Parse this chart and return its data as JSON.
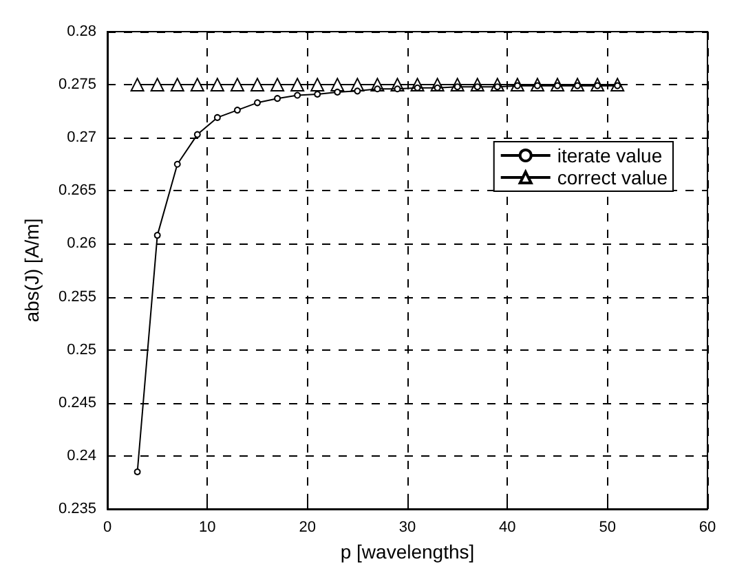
{
  "chart_data": {
    "type": "line",
    "xlabel": "p [wavelengths]",
    "ylabel": "abs(J) [A/m]",
    "x": [
      3,
      5,
      7,
      9,
      11,
      13,
      15,
      17,
      19,
      21,
      23,
      25,
      27,
      29,
      31,
      33,
      35,
      37,
      39,
      41,
      43,
      45,
      47,
      49,
      51
    ],
    "series": [
      {
        "name": "iterate value",
        "color": "#000000",
        "marker": "circle",
        "values": [
          0.2385,
          0.2608,
          0.2675,
          0.2703,
          0.2719,
          0.2726,
          0.2733,
          0.2737,
          0.274,
          0.2741,
          0.2743,
          0.2744,
          0.2746,
          0.2746,
          0.2747,
          0.2747,
          0.2748,
          0.2748,
          0.2748,
          0.2749,
          0.2749,
          0.2749,
          0.2749,
          0.2749,
          0.2749
        ]
      },
      {
        "name": "correct value",
        "color": "#000000",
        "marker": "triangle",
        "values": [
          0.275,
          0.275,
          0.275,
          0.275,
          0.275,
          0.275,
          0.275,
          0.275,
          0.275,
          0.275,
          0.275,
          0.275,
          0.275,
          0.275,
          0.275,
          0.275,
          0.275,
          0.275,
          0.275,
          0.275,
          0.275,
          0.275,
          0.275,
          0.275,
          0.275
        ]
      }
    ],
    "xlim": [
      0,
      60
    ],
    "xticks": [
      0,
      10,
      20,
      30,
      40,
      50,
      60
    ],
    "ylim": [
      0.235,
      0.28
    ],
    "yticks": [
      0.235,
      0.24,
      0.245,
      0.25,
      0.255,
      0.26,
      0.265,
      0.27,
      0.275,
      0.28
    ],
    "grid": true,
    "legend": "top right",
    "line_style": "solid"
  }
}
